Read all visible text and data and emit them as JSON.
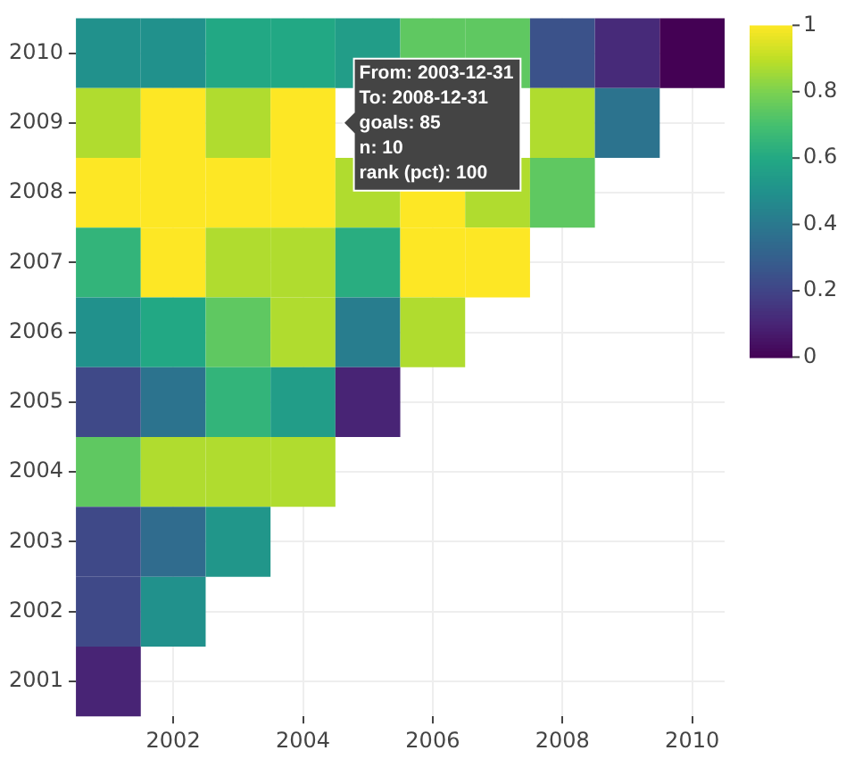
{
  "chart_data": {
    "type": "heatmap",
    "x": [
      2001,
      2002,
      2003,
      2004,
      2005,
      2006,
      2007,
      2008,
      2009,
      2010
    ],
    "y_categories": [
      "2010",
      "2009",
      "2008",
      "2007",
      "2006",
      "2005",
      "2004",
      "2003",
      "2002",
      "2001"
    ],
    "cells": [
      [
        0.5,
        0.5,
        0.6,
        0.6,
        0.55,
        0.75,
        0.75,
        0.25,
        0.12,
        0.0
      ],
      [
        0.88,
        1,
        0.88,
        1,
        null,
        null,
        null,
        0.88,
        0.38,
        null
      ],
      [
        1,
        1,
        1,
        1,
        0.88,
        1,
        0.88,
        0.75,
        null,
        null
      ],
      [
        0.65,
        1,
        0.88,
        0.88,
        0.62,
        1,
        1,
        null,
        null,
        null
      ],
      [
        0.5,
        0.6,
        0.75,
        0.88,
        0.42,
        0.88,
        null,
        null,
        null,
        null
      ],
      [
        0.22,
        0.38,
        0.65,
        0.55,
        0.1,
        null,
        null,
        null,
        null,
        null
      ],
      [
        0.75,
        0.88,
        0.88,
        0.88,
        null,
        null,
        null,
        null,
        null,
        null
      ],
      [
        0.22,
        0.35,
        0.52,
        null,
        null,
        null,
        null,
        null,
        null,
        null
      ],
      [
        0.22,
        0.5,
        null,
        null,
        null,
        null,
        null,
        null,
        null,
        null
      ],
      [
        0.1,
        null,
        null,
        null,
        null,
        null,
        null,
        null,
        null,
        null
      ]
    ],
    "xlim": [
      2000.5,
      2010.5
    ],
    "xticks": [
      2002,
      2004,
      2006,
      2008,
      2010
    ],
    "clim": [
      0,
      1
    ],
    "cticks": [
      0,
      0.2,
      0.4,
      0.6,
      0.8,
      1
    ],
    "grid": true,
    "annotations": [
      "From: 2003-12-31\nTo: 2008-12-31\ngoals: 85\nn: 10\nrank (pct): 100"
    ]
  }
}
